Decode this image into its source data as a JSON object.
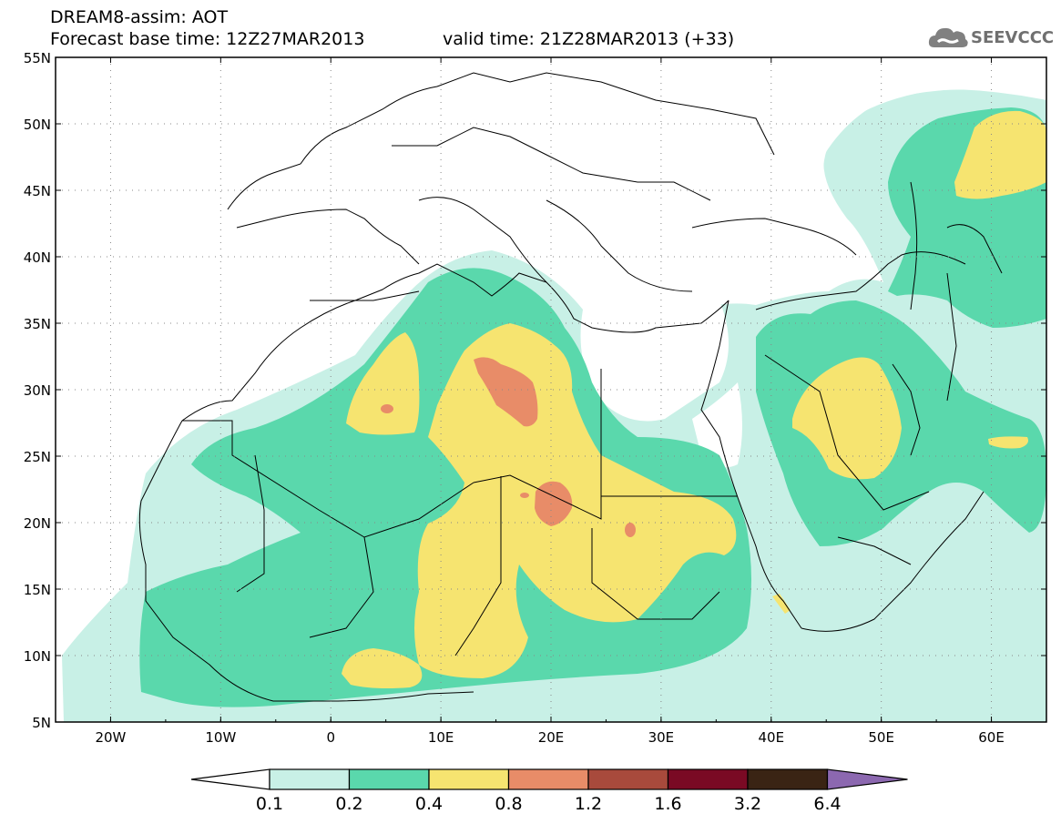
{
  "header": {
    "line1": "DREAM8-assim: AOT",
    "line2": "Forecast base time: 12Z27MAR2013",
    "valid": "valid time: 21Z28MAR2013 (+33)"
  },
  "logo": {
    "text": "SEEVCCC",
    "icon": "cloud-icon"
  },
  "map": {
    "lat_labels": [
      "55N",
      "50N",
      "45N",
      "40N",
      "35N",
      "30N",
      "25N",
      "20N",
      "15N",
      "10N",
      "5N"
    ],
    "lon_labels": [
      "20W",
      "10W",
      "0",
      "10E",
      "20E",
      "30E",
      "40E",
      "50E",
      "60E"
    ],
    "lon_range": [
      -25,
      65
    ],
    "lat_range": [
      5,
      55
    ],
    "grid": "dotted"
  },
  "colorbar": {
    "labels": [
      "0.1",
      "0.2",
      "0.4",
      "0.8",
      "1.2",
      "1.6",
      "3.2",
      "6.4"
    ],
    "colors": [
      "#c8f0e6",
      "#5ad8ac",
      "#f6e470",
      "#e88c68",
      "#a84a3c",
      "#7a0a24",
      "#3a2414",
      "#8c68b0"
    ],
    "under_color": "#ffffff"
  }
}
